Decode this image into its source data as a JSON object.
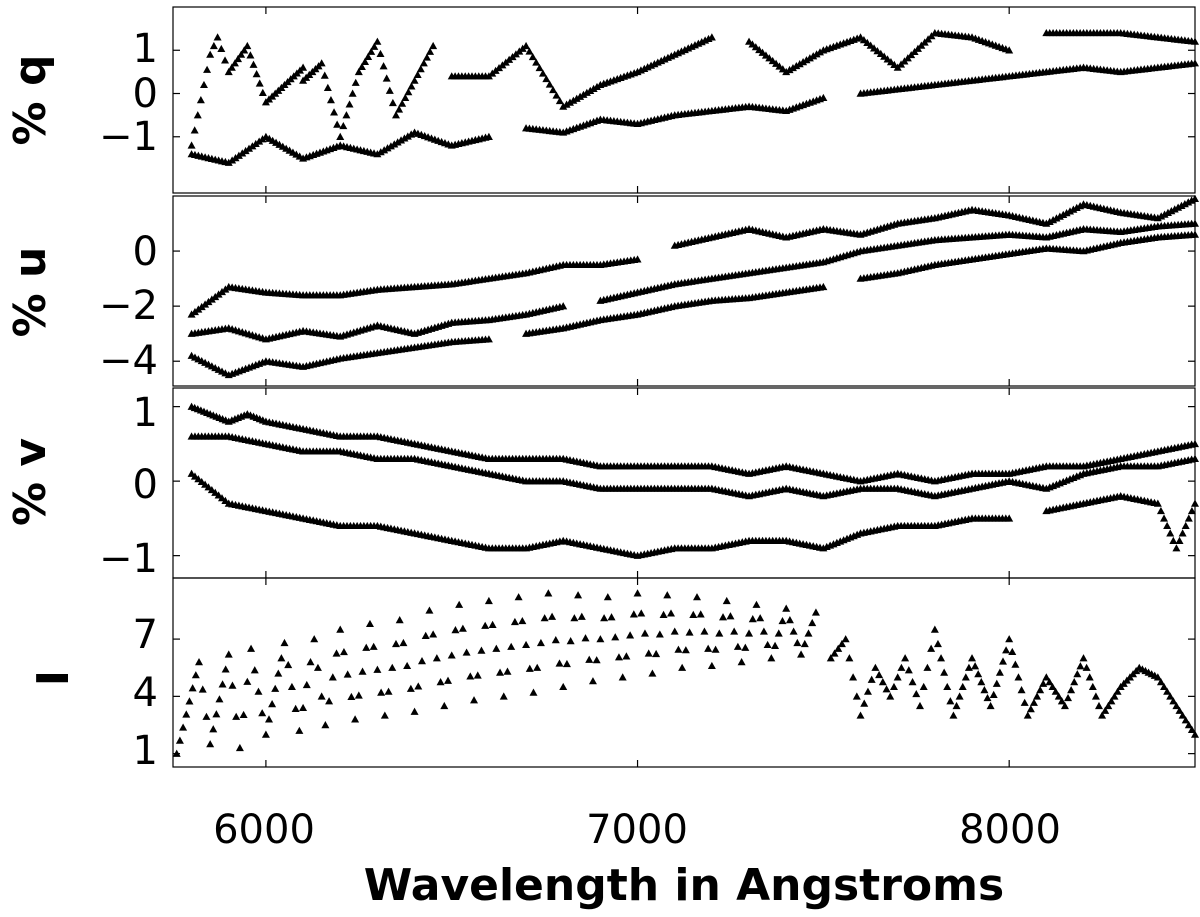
{
  "chart_data": {
    "type": "scatter",
    "marker": "filled-triangle",
    "marker_color": "#000000",
    "grid": false,
    "xlabel": "Wavelength in Angstroms",
    "xlim": [
      5750,
      8500
    ],
    "xticks": [
      6000,
      7000,
      8000
    ],
    "x_tick_labels": [
      "6000",
      "7000",
      "8000"
    ],
    "panels": [
      {
        "id": "q",
        "ylabel": "% q",
        "ylim": [
          -2.3,
          2.0
        ],
        "yticks": [
          1,
          0,
          -1
        ],
        "y_tick_labels": [
          "1",
          "0",
          "−1"
        ],
        "series": [
          {
            "x": [
              5800,
              5850,
              5870,
              5900,
              5950,
              6000,
              6050,
              6100
            ],
            "y": [
              -1.2,
              0.9,
              1.3,
              0.5,
              1.1,
              -0.2,
              0.2,
              0.6
            ]
          },
          {
            "x": [
              6100,
              6150,
              6200,
              6250,
              6300,
              6350,
              6400,
              6450
            ],
            "y": [
              0.3,
              0.7,
              -1.0,
              0.5,
              1.2,
              -0.5,
              0.3,
              1.1
            ]
          },
          {
            "x": [
              6500,
              6600,
              6700,
              6800,
              6900,
              7000,
              7100,
              7200
            ],
            "y": [
              0.4,
              0.4,
              1.1,
              -0.3,
              0.2,
              0.5,
              0.9,
              1.3
            ]
          },
          {
            "x": [
              7300,
              7400,
              7500,
              7600,
              7700,
              7800,
              7900,
              8000
            ],
            "y": [
              1.2,
              0.5,
              1.0,
              1.3,
              0.6,
              1.4,
              1.3,
              1.0
            ]
          },
          {
            "x": [
              8100,
              8200,
              8300,
              8400,
              8500
            ],
            "y": [
              1.4,
              1.4,
              1.4,
              1.3,
              1.2
            ]
          },
          {
            "x": [
              5800,
              5900,
              6000,
              6100,
              6200,
              6300,
              6400,
              6500,
              6600
            ],
            "y": [
              -1.4,
              -1.6,
              -1.0,
              -1.5,
              -1.2,
              -1.4,
              -0.9,
              -1.2,
              -1.0
            ]
          },
          {
            "x": [
              6700,
              6800,
              6900,
              7000,
              7100,
              7200,
              7300,
              7400,
              7500
            ],
            "y": [
              -0.8,
              -0.9,
              -0.6,
              -0.7,
              -0.5,
              -0.4,
              -0.3,
              -0.4,
              -0.1
            ]
          },
          {
            "x": [
              7600,
              7700,
              7800,
              7900,
              8000,
              8100,
              8200,
              8300,
              8400,
              8500
            ],
            "y": [
              0.0,
              0.1,
              0.2,
              0.3,
              0.4,
              0.5,
              0.6,
              0.5,
              0.6,
              0.7
            ]
          }
        ]
      },
      {
        "id": "u",
        "ylabel": "% u",
        "ylim": [
          -4.9,
          2.0
        ],
        "yticks": [
          0,
          -2,
          -4
        ],
        "y_tick_labels": [
          "0",
          "−2",
          "−4"
        ],
        "series": [
          {
            "x": [
              5800,
              5900,
              6000,
              6100,
              6200,
              6300,
              6400,
              6500,
              6600,
              6700,
              6800,
              6900,
              7000
            ],
            "y": [
              -2.3,
              -1.3,
              -1.5,
              -1.6,
              -1.6,
              -1.4,
              -1.3,
              -1.2,
              -1.0,
              -0.8,
              -0.5,
              -0.5,
              -0.3
            ]
          },
          {
            "x": [
              7100,
              7200,
              7300,
              7400,
              7500,
              7600,
              7700,
              7800,
              7900,
              8000,
              8100,
              8200,
              8300,
              8400,
              8500
            ],
            "y": [
              0.2,
              0.5,
              0.8,
              0.5,
              0.8,
              0.6,
              1.0,
              1.2,
              1.5,
              1.3,
              1.0,
              1.7,
              1.4,
              1.2,
              1.9
            ]
          },
          {
            "x": [
              5800,
              5900,
              6000,
              6100,
              6200,
              6300,
              6400,
              6500,
              6600,
              6700,
              6800
            ],
            "y": [
              -3.0,
              -2.8,
              -3.2,
              -2.9,
              -3.1,
              -2.7,
              -3.0,
              -2.6,
              -2.5,
              -2.3,
              -2.0
            ]
          },
          {
            "x": [
              6900,
              7000,
              7100,
              7200,
              7300,
              7400,
              7500,
              7600,
              7700,
              7800,
              7900,
              8000,
              8100,
              8200,
              8300,
              8400,
              8500
            ],
            "y": [
              -1.8,
              -1.5,
              -1.2,
              -1.0,
              -0.8,
              -0.6,
              -0.4,
              0.0,
              0.2,
              0.4,
              0.5,
              0.6,
              0.5,
              0.8,
              0.7,
              0.9,
              1.0
            ]
          },
          {
            "x": [
              5800,
              5900,
              6000,
              6100,
              6200,
              6300,
              6400,
              6500,
              6600
            ],
            "y": [
              -3.8,
              -4.5,
              -4.0,
              -4.2,
              -3.9,
              -3.7,
              -3.5,
              -3.3,
              -3.2
            ]
          },
          {
            "x": [
              6700,
              6800,
              6900,
              7000,
              7100,
              7200,
              7300,
              7400,
              7500
            ],
            "y": [
              -3.0,
              -2.8,
              -2.5,
              -2.3,
              -2.0,
              -1.8,
              -1.7,
              -1.5,
              -1.3
            ]
          },
          {
            "x": [
              7600,
              7700,
              7800,
              7900,
              8000,
              8100,
              8200,
              8300,
              8400,
              8500
            ],
            "y": [
              -1.0,
              -0.8,
              -0.5,
              -0.3,
              -0.1,
              0.1,
              0.0,
              0.3,
              0.5,
              0.6
            ]
          }
        ]
      },
      {
        "id": "v",
        "ylabel": "% v",
        "ylim": [
          -1.3,
          1.25
        ],
        "yticks": [
          1,
          0,
          -1
        ],
        "y_tick_labels": [
          "1",
          "0",
          "−1"
        ],
        "series": [
          {
            "x": [
              5800,
              5850,
              5900,
              5950,
              6000,
              6100,
              6200,
              6300,
              6400,
              6500,
              6600,
              6700,
              6800,
              6900,
              7000,
              7100,
              7200,
              7300,
              7400,
              7500,
              7600,
              7700,
              7800,
              7900,
              8000,
              8100,
              8200,
              8300,
              8400,
              8500
            ],
            "y": [
              1.0,
              0.9,
              0.8,
              0.9,
              0.8,
              0.7,
              0.6,
              0.6,
              0.5,
              0.4,
              0.3,
              0.3,
              0.3,
              0.2,
              0.2,
              0.2,
              0.2,
              0.1,
              0.2,
              0.1,
              0.0,
              0.1,
              0.0,
              0.1,
              0.1,
              0.2,
              0.2,
              0.3,
              0.4,
              0.5
            ]
          },
          {
            "x": [
              5800,
              5900,
              6000,
              6100,
              6200,
              6300,
              6400,
              6500,
              6600,
              6700,
              6800,
              6900,
              7000,
              7100,
              7200,
              7300,
              7400,
              7500,
              7600,
              7700,
              7800,
              7900,
              8000,
              8100,
              8200,
              8300,
              8400,
              8500
            ],
            "y": [
              0.6,
              0.6,
              0.5,
              0.4,
              0.4,
              0.3,
              0.3,
              0.2,
              0.1,
              0.0,
              0.0,
              -0.1,
              -0.1,
              -0.1,
              -0.1,
              -0.2,
              -0.1,
              -0.2,
              -0.1,
              -0.1,
              -0.2,
              -0.1,
              0.0,
              -0.1,
              0.1,
              0.2,
              0.2,
              0.3
            ]
          },
          {
            "x": [
              5800,
              5900,
              6000,
              6100,
              6200,
              6300,
              6400,
              6500,
              6600,
              6700,
              6800,
              6900,
              7000,
              7100,
              7200,
              7300,
              7400,
              7500,
              7600,
              7700,
              7800,
              7900,
              8000
            ],
            "y": [
              0.1,
              -0.3,
              -0.4,
              -0.5,
              -0.6,
              -0.6,
              -0.7,
              -0.8,
              -0.9,
              -0.9,
              -0.8,
              -0.9,
              -1.0,
              -0.9,
              -0.9,
              -0.8,
              -0.8,
              -0.9,
              -0.7,
              -0.6,
              -0.6,
              -0.5,
              -0.5
            ]
          },
          {
            "x": [
              8100,
              8200,
              8300,
              8400,
              8450,
              8500
            ],
            "y": [
              -0.4,
              -0.3,
              -0.2,
              -0.3,
              -0.9,
              -0.3
            ]
          }
        ]
      },
      {
        "id": "I",
        "ylabel": "I",
        "ylim": [
          0.3,
          10.2
        ],
        "yticks": [
          7,
          4,
          1
        ],
        "y_tick_labels": [
          "7",
          "4",
          "1"
        ],
        "series": [
          {
            "x": [
              5760,
              5820,
              5850,
              5900,
              5930,
              5960,
              6000,
              6050,
              6090,
              6130,
              6160,
              6200,
              6240,
              6280,
              6320,
              6360,
              6400,
              6440,
              6480,
              6520,
              6560,
              6600,
              6640,
              6680,
              6720,
              6760,
              6800,
              6840,
              6880,
              6920,
              6960,
              7000,
              7040,
              7080,
              7120,
              7160,
              7200,
              7240,
              7280,
              7320,
              7360,
              7400,
              7440,
              7480
            ],
            "y": [
              1.0,
              5.8,
              1.5,
              6.2,
              1.3,
              6.5,
              2.0,
              6.8,
              2.2,
              7.0,
              2.5,
              7.5,
              2.8,
              7.8,
              3.0,
              8.0,
              3.2,
              8.5,
              3.5,
              8.8,
              3.8,
              9.0,
              4.0,
              9.2,
              4.2,
              9.4,
              4.5,
              9.3,
              4.8,
              9.2,
              5.0,
              9.4,
              5.2,
              9.3,
              5.5,
              9.2,
              5.6,
              9.0,
              5.8,
              8.8,
              6.0,
              8.6,
              6.2,
              8.4
            ]
          },
          {
            "x": [
              7520,
              7560,
              7600,
              7640,
              7680,
              7720,
              7760,
              7800,
              7850,
              7900,
              7950,
              8000,
              8050,
              8100,
              8150,
              8200,
              8250,
              8300,
              8350,
              8400,
              8450,
              8500
            ],
            "y": [
              6.0,
              7.0,
              3.0,
              5.5,
              4.0,
              6.0,
              3.5,
              7.5,
              3.0,
              6.0,
              3.5,
              7.0,
              3.0,
              5.0,
              3.5,
              6.0,
              3.0,
              4.5,
              5.5,
              5.0,
              3.5,
              2.0
            ]
          }
        ]
      }
    ]
  }
}
